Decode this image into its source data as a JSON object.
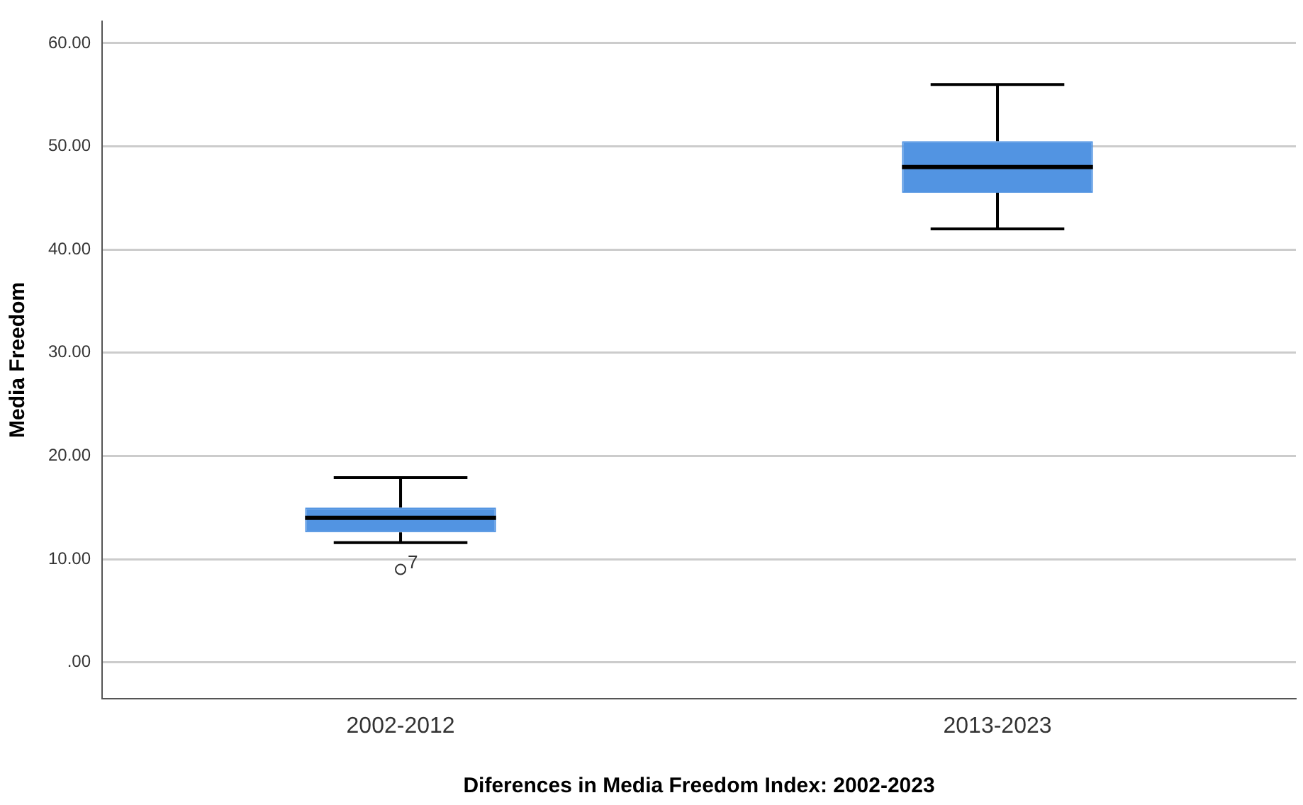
{
  "chart_data": {
    "type": "box",
    "xlabel": "Diferences in Media Freedom Index: 2002-2023",
    "ylabel": "Media Freedom",
    "categories": [
      "2002-2012",
      "2013-2023"
    ],
    "color": "#5294e2",
    "boxes": [
      {
        "low": 11.6,
        "q1": 12.6,
        "median": 14.0,
        "q3": 15.0,
        "high": 17.9,
        "outliers": [
          9.0
        ]
      },
      {
        "low": 42.0,
        "q1": 45.5,
        "median": 48.0,
        "q3": 50.5,
        "high": 56.0
      }
    ],
    "ylim": [
      -3.5,
      62.1
    ],
    "yticks": [
      {
        "value": 0,
        "label": ".00"
      },
      {
        "value": 10,
        "label": "10.00"
      },
      {
        "value": 20,
        "label": "20.00"
      },
      {
        "value": 30,
        "label": "30.00"
      },
      {
        "value": 40,
        "label": "40.00"
      },
      {
        "value": 50,
        "label": "50.00"
      },
      {
        "value": 60,
        "label": "60.00"
      }
    ],
    "grid": "y",
    "legend": false,
    "annotations": [
      "7"
    ]
  }
}
